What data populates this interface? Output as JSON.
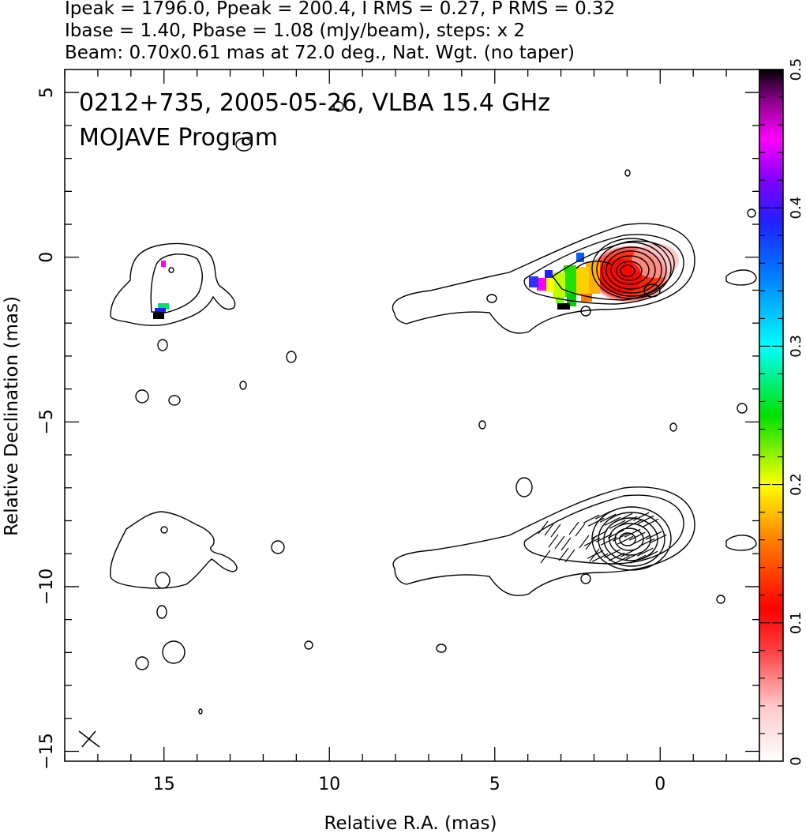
{
  "header": {
    "line1": "Ipeak = 1796.0, Ppeak = 200.4, I RMS = 0.27, P RMS = 0.32",
    "line2": "Ibase = 1.40, Pbase = 1.08 (mJy/beam), steps: x 2",
    "line3": "Beam: 0.70x0.61 mas at 72.0 deg., Nat. Wgt. (no taper)"
  },
  "annotations": {
    "source": "0212+735, 2005-05-26, VLBA 15.4 GHz",
    "program": "MOJAVE Program"
  },
  "chart_data": {
    "type": "heatmap",
    "xlabel": "Relative R.A. (mas)",
    "ylabel": "Relative Declination (mas)",
    "xlim": [
      18.0,
      -3.0
    ],
    "ylim": [
      -15.3,
      5.7
    ],
    "x_ticks": [
      {
        "value": 15,
        "label": "15"
      },
      {
        "value": 10,
        "label": "10"
      },
      {
        "value": 5,
        "label": "5"
      },
      {
        "value": 0,
        "label": "0"
      }
    ],
    "y_ticks": [
      {
        "value": 5,
        "label": "5"
      },
      {
        "value": 0,
        "label": "0"
      },
      {
        "value": -5,
        "label": "−5"
      },
      {
        "value": -10,
        "label": "−10"
      },
      {
        "value": -15,
        "label": "−15"
      }
    ],
    "colorbar": {
      "range": [
        0,
        0.5
      ],
      "ticks": [
        {
          "value": 0,
          "label": "0"
        },
        {
          "value": 0.1,
          "label": "0.1"
        },
        {
          "value": 0.2,
          "label": "0.2"
        },
        {
          "value": 0.3,
          "label": "0.3"
        },
        {
          "value": 0.4,
          "label": "0.4"
        },
        {
          "value": 0.5,
          "label": "0.5"
        }
      ]
    },
    "core_upper": {
      "x": 1.1,
      "y": -0.4
    },
    "core_lower": {
      "x": 1.1,
      "y": -8.4
    },
    "beam": {
      "x": 17.2,
      "y": -14.5
    }
  }
}
